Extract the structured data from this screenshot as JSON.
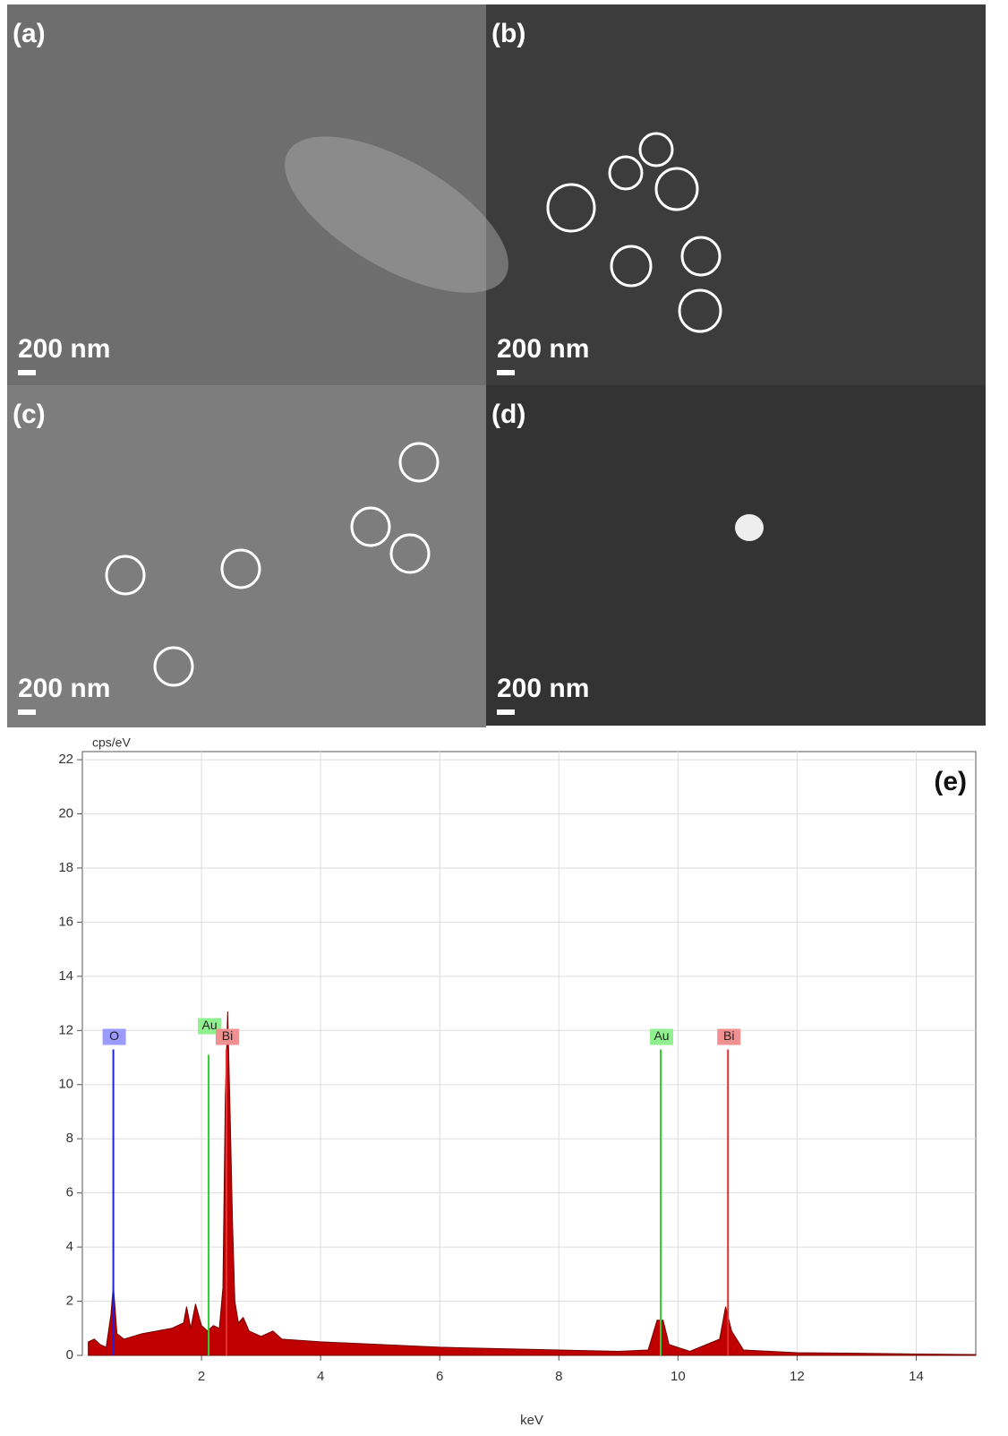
{
  "panels": [
    {
      "label": "(a)",
      "scale": "200 nm"
    },
    {
      "label": "(b)",
      "scale": "200 nm"
    },
    {
      "label": "(c)",
      "scale": "200 nm"
    },
    {
      "label": "(d)",
      "scale": "200 nm"
    }
  ],
  "chart_data": {
    "type": "area",
    "panel_label": "(e)",
    "y_unit": "cps/eV",
    "xlabel": "keV",
    "xlim": [
      0,
      15
    ],
    "ylim": [
      0,
      22.3
    ],
    "xticks": [
      2,
      4,
      6,
      8,
      10,
      12,
      14
    ],
    "yticks": [
      0,
      2,
      4,
      6,
      8,
      10,
      12,
      14,
      16,
      18,
      20,
      22
    ],
    "grid": true,
    "color": "#c00000",
    "x": [
      0.1,
      0.2,
      0.3,
      0.4,
      0.48,
      0.52,
      0.58,
      0.7,
      1.0,
      1.5,
      1.7,
      1.75,
      1.82,
      1.9,
      2.0,
      2.1,
      2.2,
      2.3,
      2.36,
      2.4,
      2.44,
      2.48,
      2.52,
      2.56,
      2.62,
      2.7,
      2.8,
      3.0,
      3.2,
      3.35,
      4.0,
      5.0,
      6.0,
      7.0,
      8.0,
      9.0,
      9.5,
      9.65,
      9.75,
      9.85,
      10.2,
      10.7,
      10.8,
      10.9,
      11.1,
      12.0,
      13.0,
      14.0,
      15.0
    ],
    "values": [
      0.5,
      0.6,
      0.4,
      0.3,
      1.5,
      2.6,
      0.8,
      0.6,
      0.8,
      1.0,
      1.2,
      1.8,
      1.0,
      1.9,
      1.1,
      0.9,
      1.1,
      1.0,
      2.5,
      9.5,
      12.7,
      9.0,
      5.0,
      2.0,
      1.2,
      1.4,
      0.9,
      0.7,
      0.9,
      0.6,
      0.5,
      0.4,
      0.3,
      0.25,
      0.2,
      0.15,
      0.2,
      1.3,
      1.3,
      0.4,
      0.15,
      0.6,
      1.8,
      0.9,
      0.2,
      0.1,
      0.08,
      0.05,
      0.03
    ],
    "element_lines": [
      {
        "label": "O",
        "x": 0.52,
        "height": 11.3,
        "color": "#2020e0",
        "box": "#9a9aff"
      },
      {
        "label": "Au",
        "x": 2.12,
        "height": 11.1,
        "color": "#30d030",
        "box": "#90f090"
      },
      {
        "label": "Bi",
        "x": 2.42,
        "height": 11.3,
        "color": "#e03030",
        "box": "#f09090"
      },
      {
        "label": "Au",
        "x": 9.71,
        "height": 11.3,
        "color": "#30d030",
        "box": "#90f090"
      },
      {
        "label": "Bi",
        "x": 10.84,
        "height": 11.3,
        "color": "#e03030",
        "box": "#f09090"
      }
    ]
  }
}
